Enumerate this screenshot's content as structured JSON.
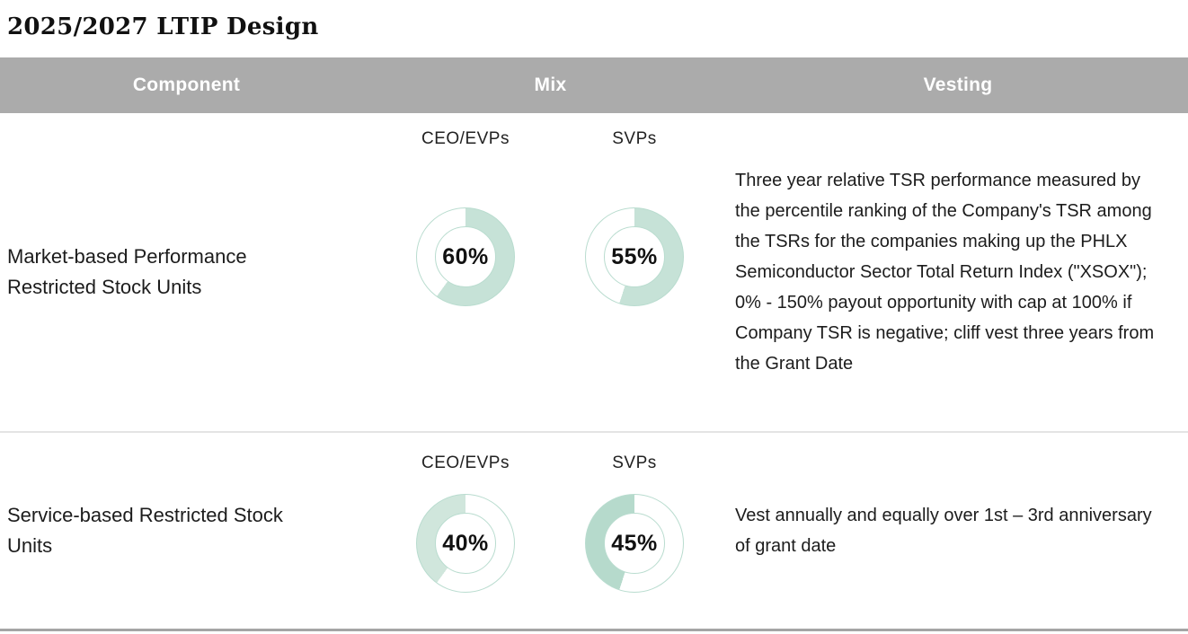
{
  "title": "2025/2027 LTIP Design",
  "colors": {
    "header_bg": "#ababab",
    "header_text": "#ffffff",
    "teal_fill": "#c6e2d7",
    "teal_fill_light": "#d0e6dc",
    "teal_fill_dark": "#b6dacc",
    "ring_outline": "#b9dccf",
    "divider": "#e4e4e4",
    "bottom_bar": "#a5a5a5",
    "body_text": "#1c1c1c"
  },
  "table": {
    "headers": [
      "Component",
      "Mix",
      "Vesting"
    ],
    "rows": [
      {
        "component": "Market-based Performance Restricted Stock Units",
        "mix": [
          {
            "label": "CEO/EVPs",
            "value": "60%"
          },
          {
            "label": "SVPs",
            "value": "55%"
          }
        ],
        "vesting": "Three year relative TSR performance measured by the percentile ranking of the Company's TSR among the TSRs for the companies making up the PHLX Semiconductor Sector Total Return Index (\"XSOX\"); 0% - 150% payout opportunity with cap at 100% if Company TSR is negative; cliff vest three years from the Grant Date"
      },
      {
        "component": "Service-based Restricted Stock Units",
        "mix": [
          {
            "label": "CEO/EVPs",
            "value": "40%"
          },
          {
            "label": "SVPs",
            "value": "45%"
          }
        ],
        "vesting": "Vest annually and equally over 1st – 3rd anniversary of grant date"
      }
    ]
  },
  "chart_data": [
    {
      "type": "pie",
      "subtype": "donut",
      "row": "Market-based Performance Restricted Stock Units",
      "label": "CEO/EVPs",
      "value_pct": 60,
      "center_label": "60%",
      "segments": [
        {
          "color": "#c6e2d7",
          "from": 0,
          "to": 60
        },
        {
          "color": "#ffffff",
          "from": 60,
          "to": 100
        }
      ]
    },
    {
      "type": "pie",
      "subtype": "donut",
      "row": "Market-based Performance Restricted Stock Units",
      "label": "SVPs",
      "value_pct": 55,
      "center_label": "55%",
      "segments": [
        {
          "color": "#c6e2d7",
          "from": 0,
          "to": 55
        },
        {
          "color": "#ffffff",
          "from": 55,
          "to": 100
        }
      ]
    },
    {
      "type": "pie",
      "subtype": "donut",
      "row": "Service-based Restricted Stock Units",
      "label": "CEO/EVPs",
      "value_pct": 40,
      "center_label": "40%",
      "segments": [
        {
          "color": "#ffffff",
          "from": 0,
          "to": 60
        },
        {
          "color": "#d0e6dc",
          "from": 60,
          "to": 100
        }
      ]
    },
    {
      "type": "pie",
      "subtype": "donut",
      "row": "Service-based Restricted Stock Units",
      "label": "SVPs",
      "value_pct": 45,
      "center_label": "45%",
      "segments": [
        {
          "color": "#ffffff",
          "from": 0,
          "to": 55
        },
        {
          "color": "#b6dacc",
          "from": 55,
          "to": 100
        }
      ]
    }
  ]
}
